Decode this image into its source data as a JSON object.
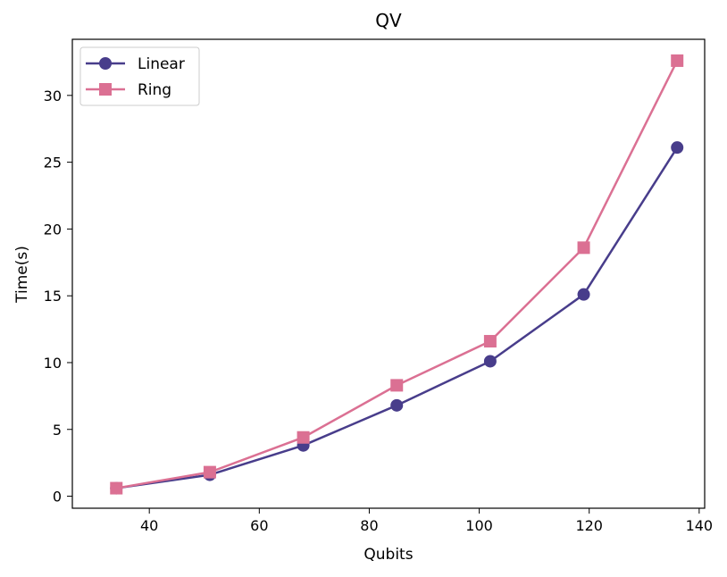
{
  "chart_data": {
    "type": "line",
    "title": "QV",
    "xlabel": "Qubits",
    "ylabel": "Time(s)",
    "x": [
      34,
      51,
      68,
      85,
      102,
      119,
      136
    ],
    "xlim": [
      26,
      141
    ],
    "ylim": [
      -0.9,
      34.2
    ],
    "xticks": [
      40,
      60,
      80,
      100,
      120,
      140
    ],
    "yticks": [
      0,
      5,
      10,
      15,
      20,
      25,
      30
    ],
    "legend_position": "upper-left",
    "series": [
      {
        "name": "Linear",
        "color": "#483d8b",
        "marker": "circle",
        "values": [
          0.6,
          1.6,
          3.8,
          6.8,
          10.1,
          15.1,
          26.1
        ]
      },
      {
        "name": "Ring",
        "color": "#db7093",
        "marker": "square",
        "values": [
          0.6,
          1.8,
          4.4,
          8.3,
          11.6,
          18.6,
          32.6
        ]
      }
    ]
  }
}
